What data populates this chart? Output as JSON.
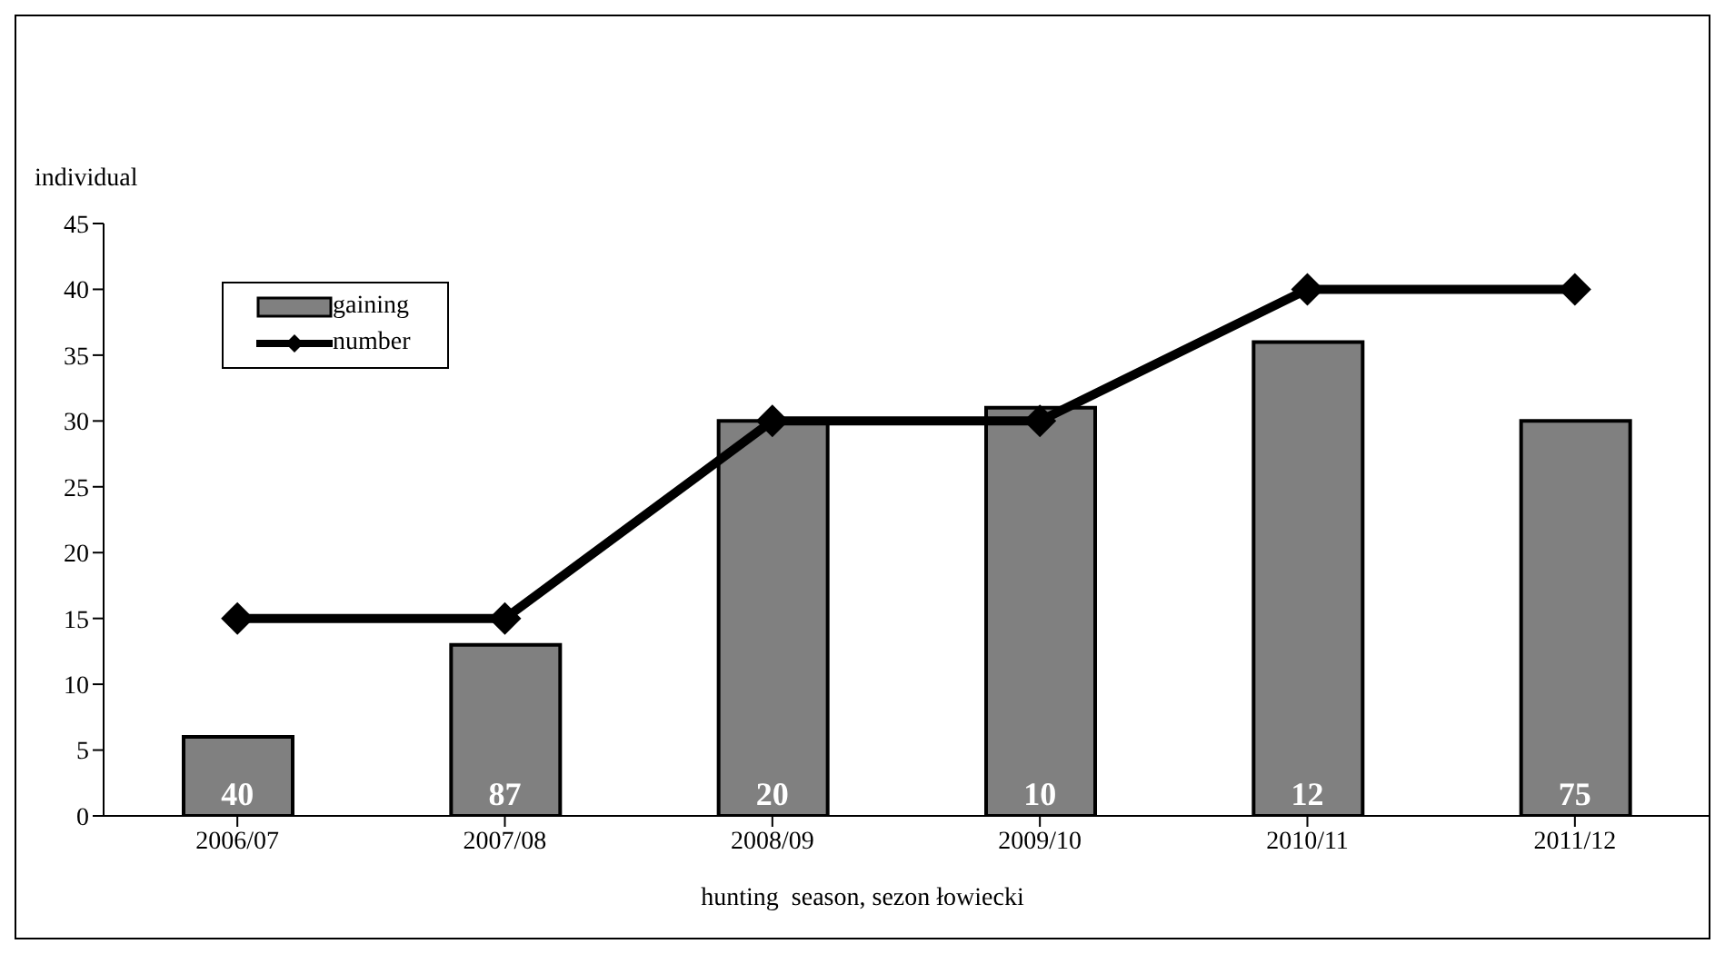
{
  "chart_data": {
    "type": "bar",
    "xlabel": "hunting  season, sezon łowiecki",
    "ylabel": "individual",
    "categories": [
      "2006/07",
      "2007/08",
      "2008/09",
      "2009/10",
      "2010/11",
      "2011/12"
    ],
    "series": [
      {
        "name": "gaining",
        "color": "#808080",
        "values": [
          6,
          13,
          30,
          31,
          36,
          30
        ]
      },
      {
        "name": "number",
        "type": "line",
        "color": "#000000",
        "values": [
          15,
          15,
          30,
          30,
          40,
          40
        ],
        "marker": "diamond"
      }
    ],
    "annotations": [
      "40",
      "87",
      "20",
      "10",
      "12",
      "75"
    ],
    "ylim": [
      0,
      45
    ],
    "yticks": [
      0,
      5,
      10,
      15,
      20,
      25,
      30,
      35,
      40,
      45
    ],
    "grid": false,
    "legend": "top left"
  }
}
